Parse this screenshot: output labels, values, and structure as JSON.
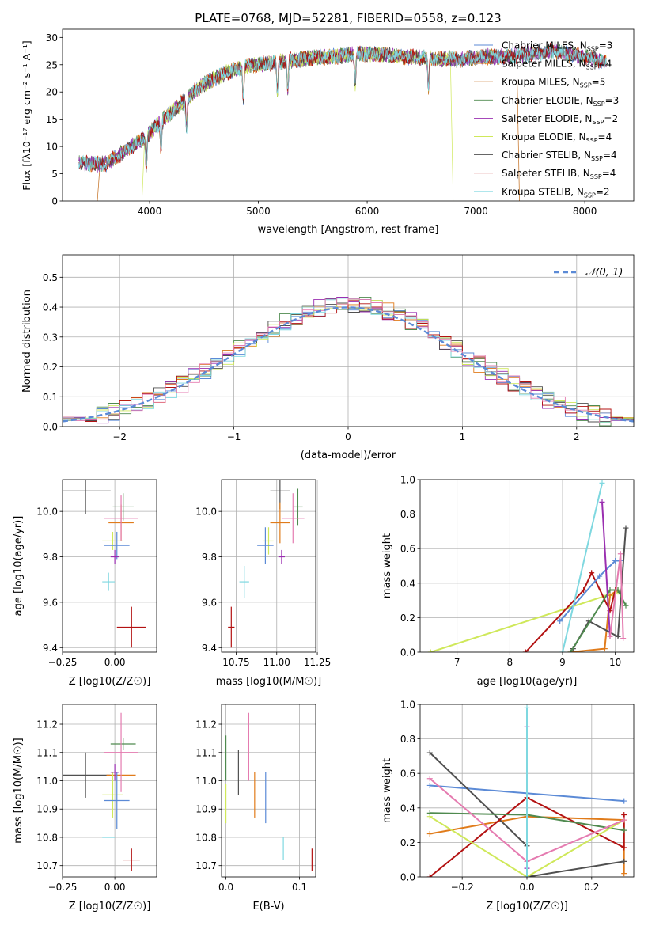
{
  "figure_title": "PLATE=0768, MJD=52281, FIBERID=0558, z=0.123",
  "colors": {
    "chab_miles": "#5b8ad6",
    "salp_miles": "#e07b1a",
    "krou_miles": "#c26b1a",
    "chab_elodie": "#4f8a4f",
    "salp_elodie": "#9a2fb0",
    "krou_elodie": "#cfe85a",
    "chab_stelib": "#505050",
    "salp_stelib": "#b31212",
    "krou_stelib": "#7fd8e0",
    "pink": "#e57bb0",
    "grid": "#b0b0b0"
  },
  "chart_data": [
    {
      "id": "spectrum",
      "type": "line",
      "title": "PLATE=0768, MJD=52281, FIBERID=0558, z=0.123",
      "xlabel": "wavelength [Angstrom, rest frame]",
      "ylabel": "Flux [fλ10⁻¹⁷ erg cm⁻² s⁻¹ A⁻¹]",
      "xlim": [
        3200,
        8450
      ],
      "ylim": [
        0,
        31.5
      ],
      "xticks": [
        4000,
        5000,
        6000,
        7000,
        8000
      ],
      "yticks": [
        0,
        5,
        10,
        15,
        20,
        25,
        30
      ],
      "grid": false,
      "legend_position": "top-right",
      "continuum": {
        "x": [
          3330,
          3600,
          3800,
          3950,
          4100,
          4300,
          4500,
          4700,
          4900,
          5100,
          5300,
          5500,
          5700,
          5900,
          6100,
          6300,
          6500,
          6700,
          6900,
          7100,
          7300,
          7500,
          7700,
          7900,
          8100,
          8200
        ],
        "y": [
          7.0,
          6.8,
          9.5,
          11.5,
          14.5,
          18.0,
          21.5,
          23.5,
          24.8,
          25.3,
          25.8,
          26.3,
          26.5,
          27.0,
          27.0,
          26.5,
          26.3,
          26.0,
          26.0,
          26.5,
          26.5,
          27.0,
          27.5,
          26.8,
          26.0,
          25.2
        ]
      },
      "dips": [
        3970,
        4105,
        4340,
        4861,
        5175,
        5270,
        5890,
        6563
      ],
      "series": [
        {
          "name": "Chabrier MILES, N_SSP=3",
          "label_main": "Chabrier MILES, N",
          "label_sub": "SSP",
          "label_tail": "=3",
          "color": "#5b8ad6",
          "start": 3350,
          "end": 8200
        },
        {
          "name": "Salpeter MILES, N_SSP=4",
          "label_main": "Salpeter MILES, N",
          "label_sub": "SSP",
          "label_tail": "=4",
          "color": "#e07b1a",
          "start": 3350,
          "end": 8200
        },
        {
          "name": "Kroupa MILES, N_SSP=5",
          "label_main": "Kroupa MILES, N",
          "label_sub": "SSP",
          "label_tail": "=5",
          "color": "#c26b1a",
          "start": 3520,
          "end": 7400
        },
        {
          "name": "Chabrier ELODIE, N_SSP=3",
          "label_main": "Chabrier ELODIE, N",
          "label_sub": "SSP",
          "label_tail": "=3",
          "color": "#4f8a4f",
          "start": 3350,
          "end": 8200
        },
        {
          "name": "Salpeter ELODIE, N_SSP=2",
          "label_main": "Salpeter ELODIE, N",
          "label_sub": "SSP",
          "label_tail": "=2",
          "color": "#9a2fb0",
          "start": 3350,
          "end": 8200
        },
        {
          "name": "Kroupa ELODIE, N_SSP=4",
          "label_main": "Kroupa ELODIE, N",
          "label_sub": "SSP",
          "label_tail": "=4",
          "color": "#cfe85a",
          "start": 3930,
          "end": 6790
        },
        {
          "name": "Chabrier STELIB, N_SSP=4",
          "label_main": "Chabrier STELIB, N",
          "label_sub": "SSP",
          "label_tail": "=4",
          "color": "#505050",
          "start": 3350,
          "end": 8200
        },
        {
          "name": "Salpeter STELIB, N_SSP=4",
          "label_main": "Salpeter STELIB, N",
          "label_sub": "SSP",
          "label_tail": "=4",
          "color": "#b31212",
          "start": 3350,
          "end": 8200
        },
        {
          "name": "Kroupa STELIB, N_SSP=2",
          "label_main": "Kroupa STELIB, N",
          "label_sub": "SSP",
          "label_tail": "=2",
          "color": "#7fd8e0",
          "start": 3350,
          "end": 8200
        }
      ]
    },
    {
      "id": "residuals",
      "type": "histogram",
      "xlabel": "(data-model)/error",
      "ylabel": "Normed distribution",
      "xlim": [
        -2.5,
        2.5
      ],
      "ylim": [
        0,
        0.575
      ],
      "xticks": [
        -2,
        -1,
        0,
        1,
        2
      ],
      "xtick_labels": [
        "−2",
        "−1",
        "0",
        "1",
        "2"
      ],
      "yticks": [
        0.0,
        0.1,
        0.2,
        0.3,
        0.4,
        0.5
      ],
      "grid": true,
      "legend": {
        "label": "𝒩(0, 1)",
        "position": "top-right",
        "color": "#5b8ad6"
      },
      "bin_start": -2.6,
      "bin_width": 0.1
    },
    {
      "id": "age_vs_Z",
      "type": "errorbar",
      "xlabel": "Z [log10(Z/Z☉)]",
      "ylabel": "age  [log10(age/yr)]",
      "xlim": [
        -0.25,
        0.2
      ],
      "ylim": [
        9.38,
        10.14
      ],
      "xticks": [
        -0.25,
        0.0
      ],
      "xtick_labels": [
        "−0.25",
        "0.00"
      ],
      "yticks": [
        9.4,
        9.6,
        9.8,
        10.0
      ],
      "grid": true,
      "points": [
        {
          "x": -0.03,
          "y": 9.69,
          "xerr": 0.03,
          "yerr": 0.04,
          "color": "#7fd8e0"
        },
        {
          "x": 0.08,
          "y": 9.49,
          "xerr": 0.07,
          "yerr": 0.09,
          "color": "#b31212"
        },
        {
          "x": -0.14,
          "y": 10.09,
          "xerr": 0.12,
          "yerr": 0.1,
          "color": "#505050"
        },
        {
          "x": 0.04,
          "y": 10.02,
          "xerr": 0.05,
          "yerr": 0.06,
          "color": "#4f8a4f"
        },
        {
          "x": 0.03,
          "y": 9.95,
          "xerr": 0.06,
          "yerr": 0.08,
          "color": "#e07b1a"
        },
        {
          "x": 0.03,
          "y": 9.97,
          "xerr": 0.08,
          "yerr": 0.1,
          "color": "#e57bb0"
        },
        {
          "x": -0.01,
          "y": 9.87,
          "xerr": 0.05,
          "yerr": 0.04,
          "color": "#cfe85a"
        },
        {
          "x": 0.01,
          "y": 9.85,
          "xerr": 0.06,
          "yerr": 0.06,
          "color": "#5b8ad6"
        },
        {
          "x": 0.0,
          "y": 9.8,
          "xerr": 0.02,
          "yerr": 0.03,
          "color": "#9a2fb0"
        }
      ]
    },
    {
      "id": "age_vs_mass",
      "type": "errorbar",
      "xlabel": "mass [log10(M/M☉)]",
      "ylabel": "",
      "xlim": [
        10.66,
        11.24
      ],
      "ylim": [
        9.38,
        10.14
      ],
      "xticks": [
        10.75,
        11.0,
        11.25
      ],
      "xtick_labels": [
        "10.75",
        "11.00",
        "11.25"
      ],
      "yticks": [
        9.4,
        9.6,
        9.8,
        10.0
      ],
      "grid": true,
      "points": [
        {
          "x": 10.8,
          "y": 9.69,
          "xerr": 0.03,
          "yerr": 0.07,
          "color": "#7fd8e0"
        },
        {
          "x": 10.72,
          "y": 9.49,
          "xerr": 0.02,
          "yerr": 0.09,
          "color": "#b31212"
        },
        {
          "x": 11.02,
          "y": 10.09,
          "xerr": 0.06,
          "yerr": 0.08,
          "color": "#505050"
        },
        {
          "x": 11.13,
          "y": 10.02,
          "xerr": 0.03,
          "yerr": 0.08,
          "color": "#4f8a4f"
        },
        {
          "x": 11.02,
          "y": 9.95,
          "xerr": 0.06,
          "yerr": 0.09,
          "color": "#e07b1a"
        },
        {
          "x": 11.1,
          "y": 9.97,
          "xerr": 0.07,
          "yerr": 0.11,
          "color": "#e57bb0"
        },
        {
          "x": 10.95,
          "y": 9.87,
          "xerr": 0.03,
          "yerr": 0.06,
          "color": "#cfe85a"
        },
        {
          "x": 10.93,
          "y": 9.85,
          "xerr": 0.05,
          "yerr": 0.08,
          "color": "#5b8ad6"
        },
        {
          "x": 11.03,
          "y": 9.8,
          "xerr": 0.02,
          "yerr": 0.03,
          "color": "#9a2fb0"
        }
      ]
    },
    {
      "id": "weight_vs_age",
      "type": "line",
      "xlabel": "age  [log10(age/yr)]",
      "ylabel": "mass weight",
      "xlim": [
        6.3,
        10.35
      ],
      "ylim": [
        0,
        1.0
      ],
      "xticks": [
        7,
        8,
        9,
        10
      ],
      "yticks": [
        0.0,
        0.2,
        0.4,
        0.6,
        0.8,
        1.0
      ],
      "grid": true,
      "series": [
        {
          "color": "#cfe85a",
          "x": [
            6.5,
            9.85,
            9.95,
            10.05
          ],
          "y": [
            0.0,
            0.33,
            0.33,
            0.35
          ]
        },
        {
          "color": "#e07b1a",
          "x": [
            9.15,
            9.8,
            9.9,
            10.05
          ],
          "y": [
            0.0,
            0.02,
            0.33,
            0.36
          ]
        },
        {
          "color": "#505050",
          "x": [
            9.2,
            9.5,
            10.05,
            10.2
          ],
          "y": [
            0.02,
            0.18,
            0.09,
            0.72
          ]
        },
        {
          "color": "#b31212",
          "x": [
            8.3,
            9.4,
            9.55,
            9.9,
            10.0
          ],
          "y": [
            0.0,
            0.36,
            0.46,
            0.24,
            0.36
          ]
        },
        {
          "color": "#4f8a4f",
          "x": [
            9.15,
            9.9,
            10.05,
            10.2
          ],
          "y": [
            0.0,
            0.36,
            0.36,
            0.27
          ]
        },
        {
          "color": "#5b8ad6",
          "x": [
            8.95,
            9.7,
            10.0,
            10.1
          ],
          "y": [
            0.18,
            0.44,
            0.53,
            0.53
          ]
        },
        {
          "color": "#9a2fb0",
          "x": [
            9.75,
            9.9
          ],
          "y": [
            0.87,
            0.09
          ]
        },
        {
          "color": "#e57bb0",
          "x": [
            9.9,
            10.1,
            10.15
          ],
          "y": [
            0.09,
            0.57,
            0.08
          ]
        },
        {
          "color": "#7fd8e0",
          "x": [
            9.0,
            9.75
          ],
          "y": [
            0.0,
            0.98
          ]
        }
      ]
    },
    {
      "id": "mass_vs_Z",
      "type": "errorbar",
      "xlabel": "Z [log10(Z/Z☉)]",
      "ylabel": "mass [log10(M/M☉)]",
      "xlim": [
        -0.25,
        0.2
      ],
      "ylim": [
        10.66,
        11.27
      ],
      "xticks": [
        -0.25,
        0.0
      ],
      "xtick_labels": [
        "−0.25",
        "0.00"
      ],
      "yticks": [
        10.7,
        10.8,
        10.9,
        11.0,
        11.1,
        11.2
      ],
      "grid": true,
      "points": [
        {
          "x": -0.03,
          "y": 10.8,
          "xerr": 0.03,
          "yerr": 0.0,
          "color": "#7fd8e0"
        },
        {
          "x": 0.08,
          "y": 10.72,
          "xerr": 0.04,
          "yerr": 0.04,
          "color": "#b31212"
        },
        {
          "x": -0.14,
          "y": 11.02,
          "xerr": 0.12,
          "yerr": 0.08,
          "color": "#505050"
        },
        {
          "x": 0.04,
          "y": 11.13,
          "xerr": 0.06,
          "yerr": 0.02,
          "color": "#4f8a4f"
        },
        {
          "x": 0.03,
          "y": 11.02,
          "xerr": 0.07,
          "yerr": 0.0,
          "color": "#e07b1a"
        },
        {
          "x": 0.03,
          "y": 11.1,
          "xerr": 0.08,
          "yerr": 0.14,
          "color": "#e57bb0"
        },
        {
          "x": -0.01,
          "y": 10.95,
          "xerr": 0.05,
          "yerr": 0.08,
          "color": "#cfe85a"
        },
        {
          "x": 0.01,
          "y": 10.93,
          "xerr": 0.06,
          "yerr": 0.1,
          "color": "#5b8ad6"
        },
        {
          "x": 0.0,
          "y": 11.03,
          "xerr": 0.02,
          "yerr": 0.03,
          "color": "#9a2fb0"
        }
      ]
    },
    {
      "id": "mass_vs_ebv",
      "type": "errorbar",
      "xlabel": "E(B-V)",
      "ylabel": "",
      "xlim": [
        -0.006,
        0.122
      ],
      "ylim": [
        10.66,
        11.27
      ],
      "xticks": [
        0.0,
        0.1
      ],
      "xtick_labels": [
        "0.0",
        "0.1"
      ],
      "yticks": [
        10.7,
        10.8,
        10.9,
        11.0,
        11.1,
        11.2
      ],
      "grid": true,
      "points": [
        {
          "x": 0.0,
          "y": 11.08,
          "xerr": 0.0,
          "yerr": 0.08,
          "color": "#4f8a4f"
        },
        {
          "x": 0.0,
          "y": 10.92,
          "xerr": 0.0,
          "yerr": 0.07,
          "color": "#cfe85a"
        },
        {
          "x": 0.017,
          "y": 11.03,
          "xerr": 0.0,
          "yerr": 0.08,
          "color": "#505050"
        },
        {
          "x": 0.031,
          "y": 11.12,
          "xerr": 0.0,
          "yerr": 0.12,
          "color": "#e57bb0"
        },
        {
          "x": 0.039,
          "y": 10.95,
          "xerr": 0.0,
          "yerr": 0.08,
          "color": "#e07b1a"
        },
        {
          "x": 0.054,
          "y": 10.94,
          "xerr": 0.0,
          "yerr": 0.09,
          "color": "#5b8ad6"
        },
        {
          "x": 0.078,
          "y": 10.76,
          "xerr": 0.0,
          "yerr": 0.04,
          "color": "#7fd8e0"
        },
        {
          "x": 0.117,
          "y": 10.72,
          "xerr": 0.0,
          "yerr": 0.04,
          "color": "#b31212"
        }
      ]
    },
    {
      "id": "weight_vs_Z",
      "type": "line",
      "xlabel": "Z [log10(Z/Z☉)]",
      "ylabel": "mass weight",
      "xlim": [
        -0.33,
        0.33
      ],
      "ylim": [
        0,
        1.0
      ],
      "xticks": [
        -0.2,
        0.0,
        0.2
      ],
      "xtick_labels": [
        "−0.2",
        "0.0",
        "0.2"
      ],
      "yticks": [
        0.0,
        0.2,
        0.4,
        0.6,
        0.8,
        1.0
      ],
      "grid": true,
      "series": [
        {
          "color": "#5b8ad6",
          "x": [
            -0.3,
            0.3
          ],
          "y": [
            0.53,
            0.44
          ]
        },
        {
          "color": "#e07b1a",
          "x": [
            -0.3,
            0.0,
            0.3,
            0.3
          ],
          "y": [
            0.25,
            0.35,
            0.33,
            0.02
          ]
        },
        {
          "color": "#505050",
          "x": [
            -0.3,
            0.0,
            0.0,
            0.3
          ],
          "y": [
            0.72,
            0.18,
            0.0,
            0.09
          ]
        },
        {
          "color": "#b31212",
          "x": [
            -0.3,
            0.0,
            0.3,
            0.3
          ],
          "y": [
            0.0,
            0.46,
            0.17,
            0.36
          ]
        },
        {
          "color": "#4f8a4f",
          "x": [
            -0.3,
            0.0,
            0.3
          ],
          "y": [
            0.37,
            0.36,
            0.27
          ]
        },
        {
          "color": "#cfe85a",
          "x": [
            -0.3,
            0.0,
            0.3
          ],
          "y": [
            0.35,
            0.0,
            0.33
          ]
        },
        {
          "color": "#e57bb0",
          "x": [
            -0.3,
            0.0,
            0.3
          ],
          "y": [
            0.57,
            0.09,
            0.33
          ]
        },
        {
          "color": "#9a2fb0",
          "x": [
            0.0,
            0.0
          ],
          "y": [
            0.87,
            0.05
          ]
        },
        {
          "color": "#7fd8e0",
          "x": [
            0.0,
            0.0
          ],
          "y": [
            0.98,
            0.0
          ]
        }
      ]
    }
  ]
}
